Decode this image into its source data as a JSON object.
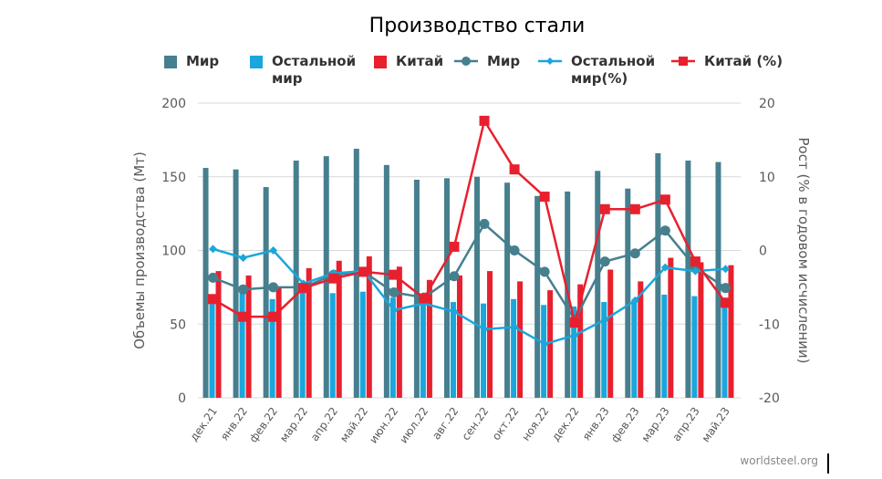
{
  "chart_data": {
    "type": "bar",
    "title": "Производство стали",
    "categories": [
      "дек.21",
      "янв.22",
      "фев.22",
      "мар.22",
      "апр.22",
      "май.22",
      "июн.22",
      "июл.22",
      "авг.22",
      "сен.22",
      "окт.22",
      "ноя.22",
      "дек.22",
      "янв.23",
      "фев.23",
      "мар.23",
      "апр.23",
      "май.23"
    ],
    "ylabel": "Объемы производства (Мт)",
    "y2label": "Рост (% в годовом исчислении)",
    "ylim": [
      0,
      200
    ],
    "yticks": [
      0,
      50,
      100,
      150,
      200
    ],
    "y2lim": [
      -20,
      20
    ],
    "y2ticks": [
      -20,
      -10,
      0,
      10,
      20
    ],
    "grid": true,
    "legend_position": "top",
    "series": [
      {
        "name": "Мир",
        "type": "bar",
        "axis": "left",
        "color": "#467f8e",
        "values": [
          156,
          155,
          143,
          161,
          164,
          169,
          158,
          148,
          149,
          150,
          146,
          137,
          140,
          154,
          142,
          166,
          161,
          160
        ]
      },
      {
        "name": "Остальной мир",
        "type": "bar",
        "axis": "left",
        "color": "#1ba6dc",
        "values": [
          70,
          72,
          67,
          72,
          71,
          72,
          68,
          67,
          65,
          64,
          67,
          63,
          62,
          65,
          65,
          70,
          69,
          68
        ]
      },
      {
        "name": "Китай",
        "type": "bar",
        "axis": "left",
        "color": "#e8202e",
        "values": [
          86,
          83,
          75,
          88,
          93,
          96,
          89,
          80,
          83,
          86,
          79,
          73,
          77,
          87,
          79,
          95,
          92,
          90
        ]
      },
      {
        "name": "Мир",
        "type": "line",
        "axis": "right",
        "color": "#467f8e",
        "marker": "circle",
        "values": [
          -3.7,
          -5.3,
          -5.0,
          -5.0,
          -3.3,
          -2.9,
          -5.7,
          -6.4,
          -3.5,
          3.6,
          0.0,
          -2.9,
          -9.4,
          -1.5,
          -0.4,
          2.7,
          -2.3,
          -5.1
        ]
      },
      {
        "name": "Остальной\nмир (%)",
        "type": "line",
        "axis": "right",
        "color": "#1ba6dc",
        "marker": "diamond",
        "values": [
          0.2,
          -1.0,
          0.0,
          -4.5,
          -3.1,
          -2.8,
          -8.1,
          -7.2,
          -8.3,
          -10.7,
          -10.4,
          -12.7,
          -11.5,
          -9.4,
          -6.8,
          -2.3,
          -2.8,
          -2.5
        ]
      },
      {
        "name": "Китай (%)",
        "type": "line",
        "axis": "right",
        "color": "#e8202e",
        "marker": "square",
        "values": [
          -6.6,
          -9.0,
          -9.0,
          -5.1,
          -3.8,
          -2.9,
          -3.3,
          -6.5,
          0.5,
          17.6,
          11.0,
          7.3,
          -9.8,
          5.6,
          5.6,
          6.9,
          -1.5,
          -7.1
        ]
      }
    ]
  },
  "legend": {
    "items": [
      {
        "label": "Мир",
        "kind": "rect",
        "color": "#467f8e"
      },
      {
        "label": "Остальной\nмир",
        "kind": "rect",
        "color": "#1ba6dc"
      },
      {
        "label": "Китай",
        "kind": "rect",
        "color": "#e8202e"
      },
      {
        "label": "Мир",
        "kind": "circle-line",
        "color": "#467f8e"
      },
      {
        "label": "Остальной\nмир(%)",
        "kind": "diamond-line",
        "color": "#1ba6dc"
      },
      {
        "label": "Китай (%)",
        "kind": "square-line",
        "color": "#e8202e"
      }
    ]
  },
  "watermark": "worldsteel.org"
}
